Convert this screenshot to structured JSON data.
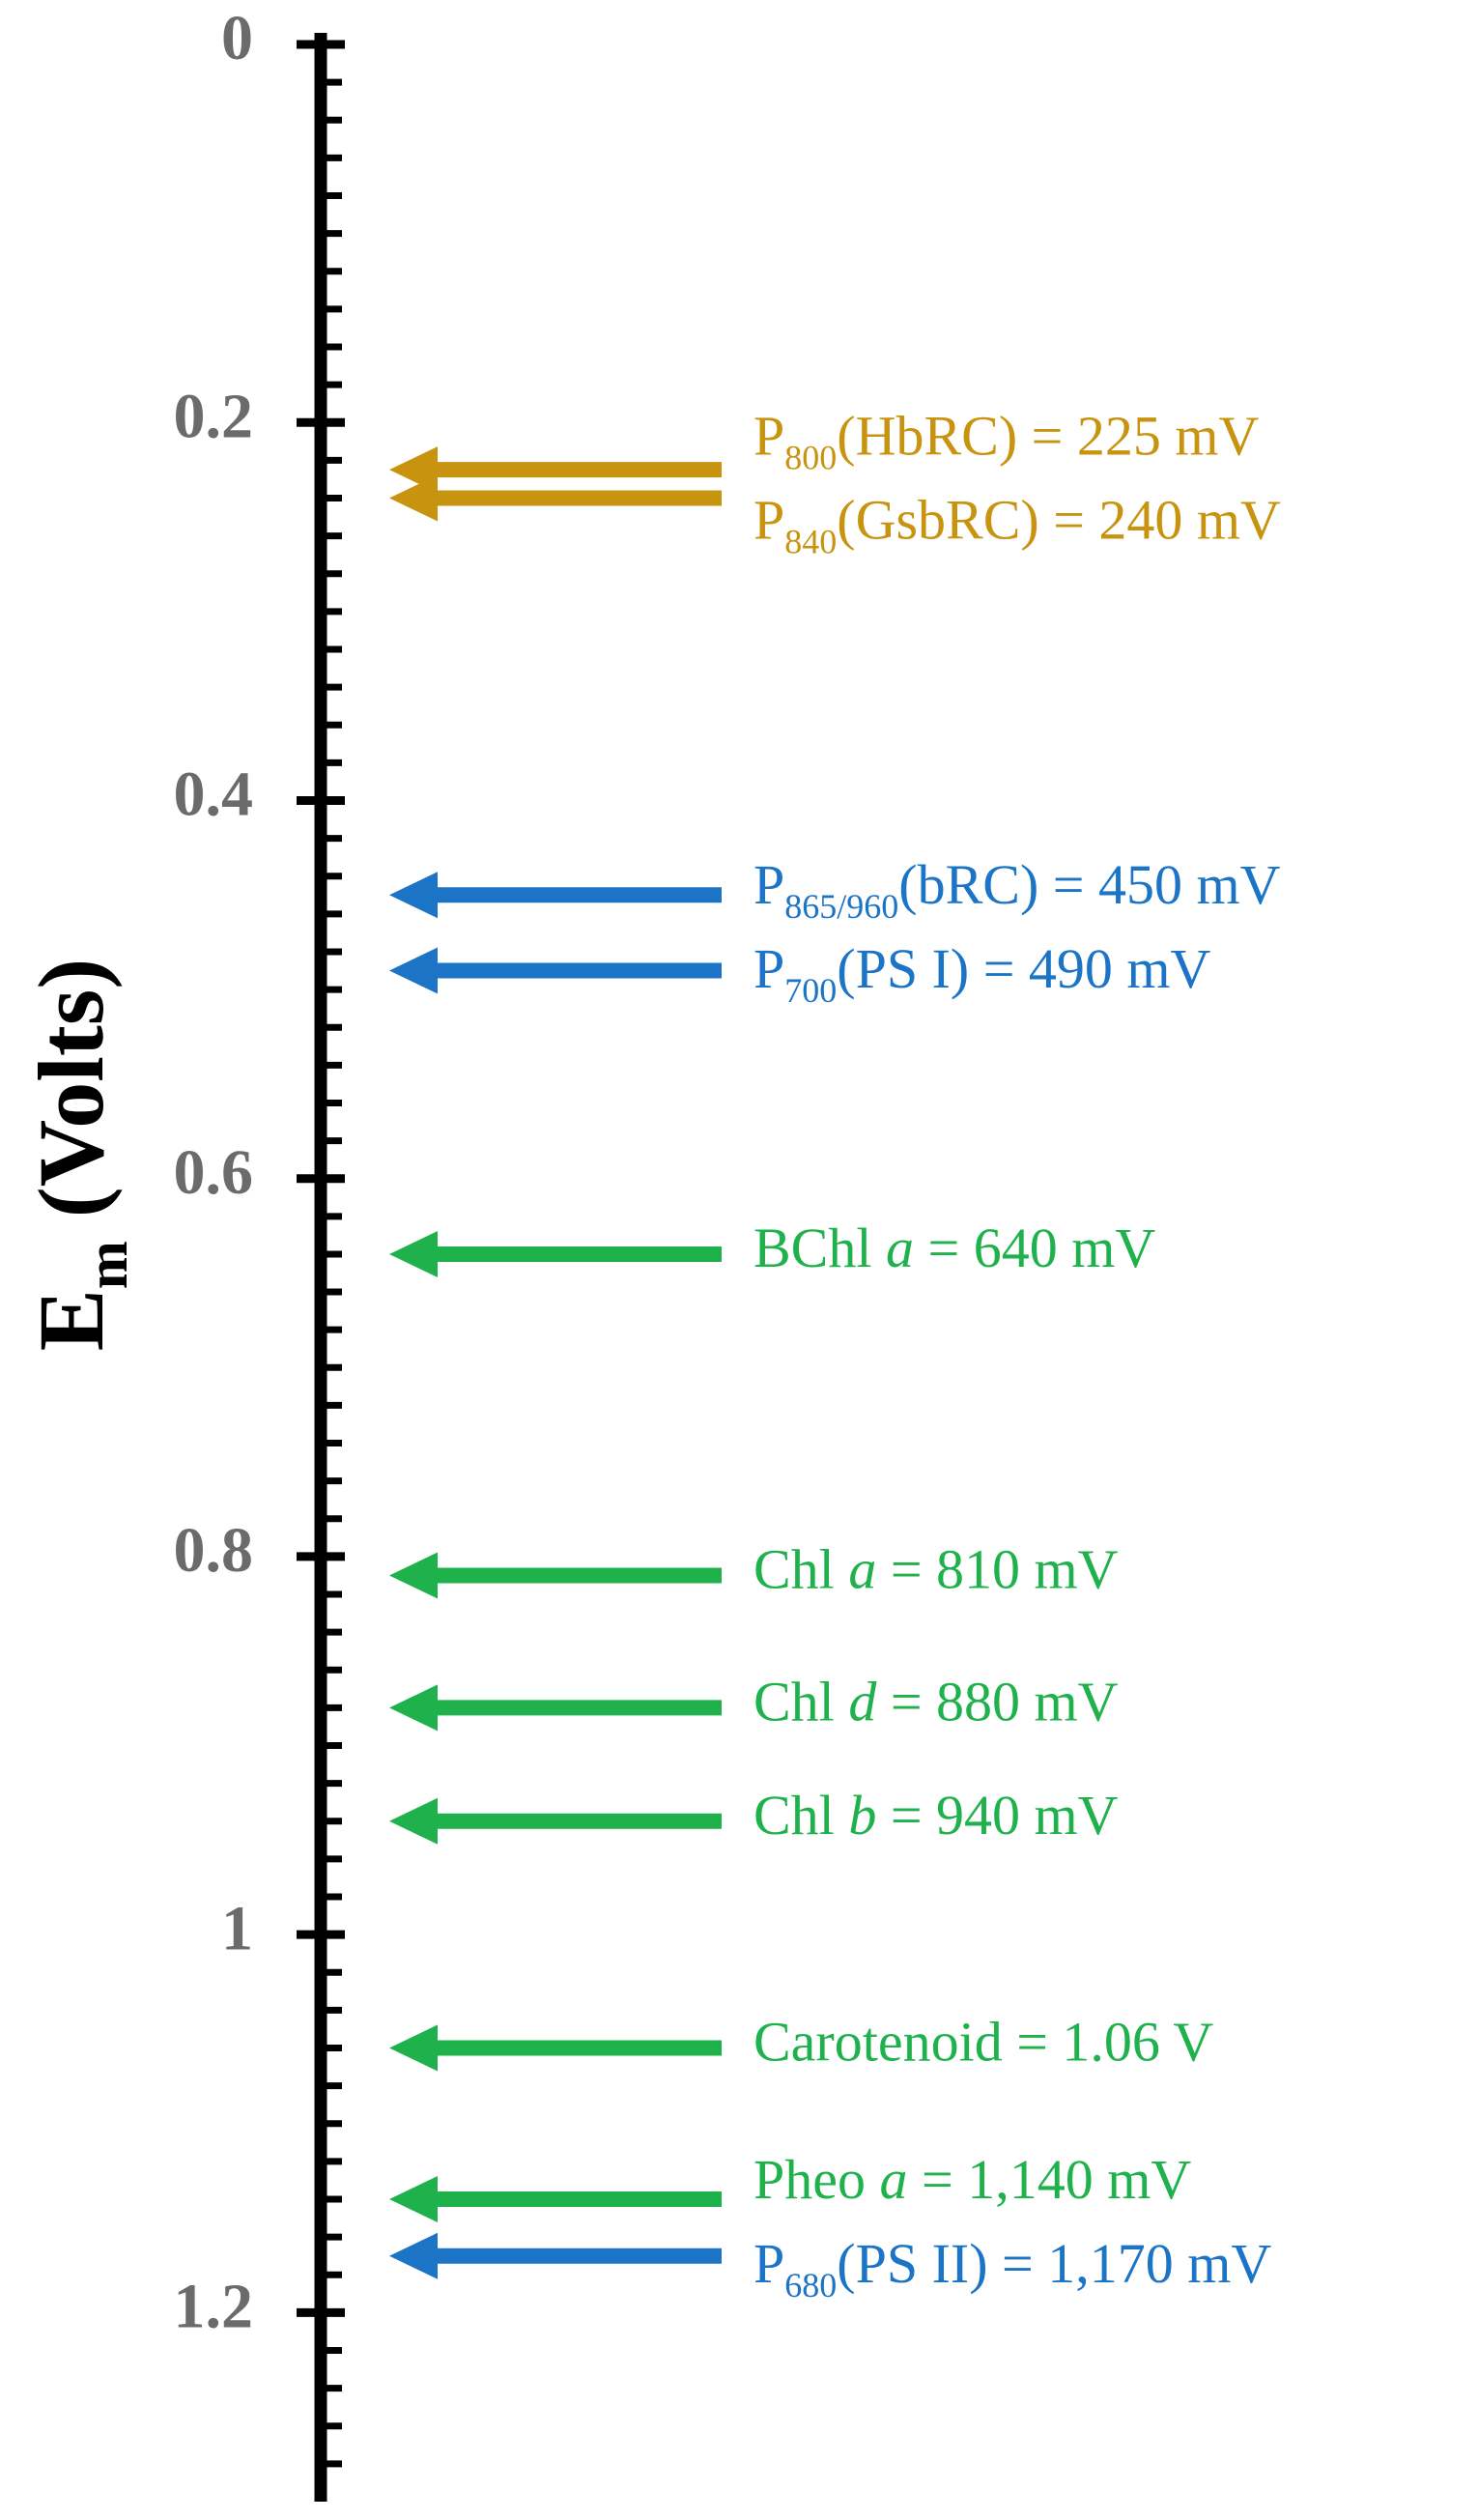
{
  "chart_data": {
    "type": "arrow-scale",
    "ylabel": [
      {
        "text": "E"
      },
      {
        "text": "m",
        "style": "sub"
      },
      {
        "text": " (Volts)"
      }
    ],
    "ylim": [
      0,
      1.3
    ],
    "yticks": [
      0,
      0.2,
      0.4,
      0.6,
      0.8,
      1,
      1.2
    ],
    "yminorticks": [
      0.02,
      0.04,
      0.06,
      0.08,
      0.1,
      0.12,
      0.14,
      0.16,
      0.18,
      0.22,
      0.24,
      0.26,
      0.28,
      0.3,
      0.32,
      0.34,
      0.36,
      0.38,
      0.42,
      0.44,
      0.46,
      0.48,
      0.5,
      0.52,
      0.54,
      0.56,
      0.58,
      0.62,
      0.64,
      0.66,
      0.68,
      0.7,
      0.72,
      0.74,
      0.76,
      0.78,
      0.82,
      0.84,
      0.86,
      0.88,
      0.9,
      0.92,
      0.94,
      0.96,
      0.98,
      1.02,
      1.04,
      1.06,
      1.08,
      1.1,
      1.12,
      1.14,
      1.16,
      1.18,
      1.22,
      1.24,
      1.26,
      1.28
    ],
    "markers": [
      {
        "value": 0.225,
        "color": "#c8940f",
        "label": [
          {
            "text": "P"
          },
          {
            "text": "800",
            "style": "sub"
          },
          {
            "text": "(HbRC) = 225 mV"
          }
        ]
      },
      {
        "value": 0.24,
        "color": "#c8940f",
        "label": [
          {
            "text": "P"
          },
          {
            "text": "840",
            "style": "sub"
          },
          {
            "text": "(GsbRC) = 240 mV"
          }
        ]
      },
      {
        "value": 0.45,
        "color": "#1b74c6",
        "label": [
          {
            "text": "P"
          },
          {
            "text": "865/960",
            "style": "sub"
          },
          {
            "text": "(bRC) = 450 mV"
          }
        ]
      },
      {
        "value": 0.49,
        "color": "#1b74c6",
        "label": [
          {
            "text": "P"
          },
          {
            "text": "700",
            "style": "sub"
          },
          {
            "text": "(PS I) = 490 mV"
          }
        ]
      },
      {
        "value": 0.64,
        "color": "#1fb24c",
        "label": [
          {
            "text": "BChl "
          },
          {
            "text": "a",
            "style": "italic"
          },
          {
            "text": " = 640 mV"
          }
        ]
      },
      {
        "value": 0.81,
        "color": "#1fb24c",
        "label": [
          {
            "text": "Chl "
          },
          {
            "text": "a",
            "style": "italic"
          },
          {
            "text": " = 810 mV"
          }
        ]
      },
      {
        "value": 0.88,
        "color": "#1fb24c",
        "label": [
          {
            "text": "Chl "
          },
          {
            "text": "d",
            "style": "italic"
          },
          {
            "text": " = 880 mV"
          }
        ]
      },
      {
        "value": 0.94,
        "color": "#1fb24c",
        "label": [
          {
            "text": "Chl "
          },
          {
            "text": "b",
            "style": "italic"
          },
          {
            "text": " = 940 mV"
          }
        ]
      },
      {
        "value": 1.06,
        "color": "#1fb24c",
        "label": [
          {
            "text": "Carotenoid = 1.06 V"
          }
        ]
      },
      {
        "value": 1.14,
        "color": "#1fb24c",
        "label": [
          {
            "text": "Pheo "
          },
          {
            "text": "a",
            "style": "italic"
          },
          {
            "text": " = 1,140 mV"
          }
        ]
      },
      {
        "value": 1.17,
        "color": "#1b74c6",
        "label": [
          {
            "text": "P"
          },
          {
            "text": "680",
            "style": "sub"
          },
          {
            "text": "(PS II) = 1,170 mV"
          }
        ]
      }
    ]
  }
}
